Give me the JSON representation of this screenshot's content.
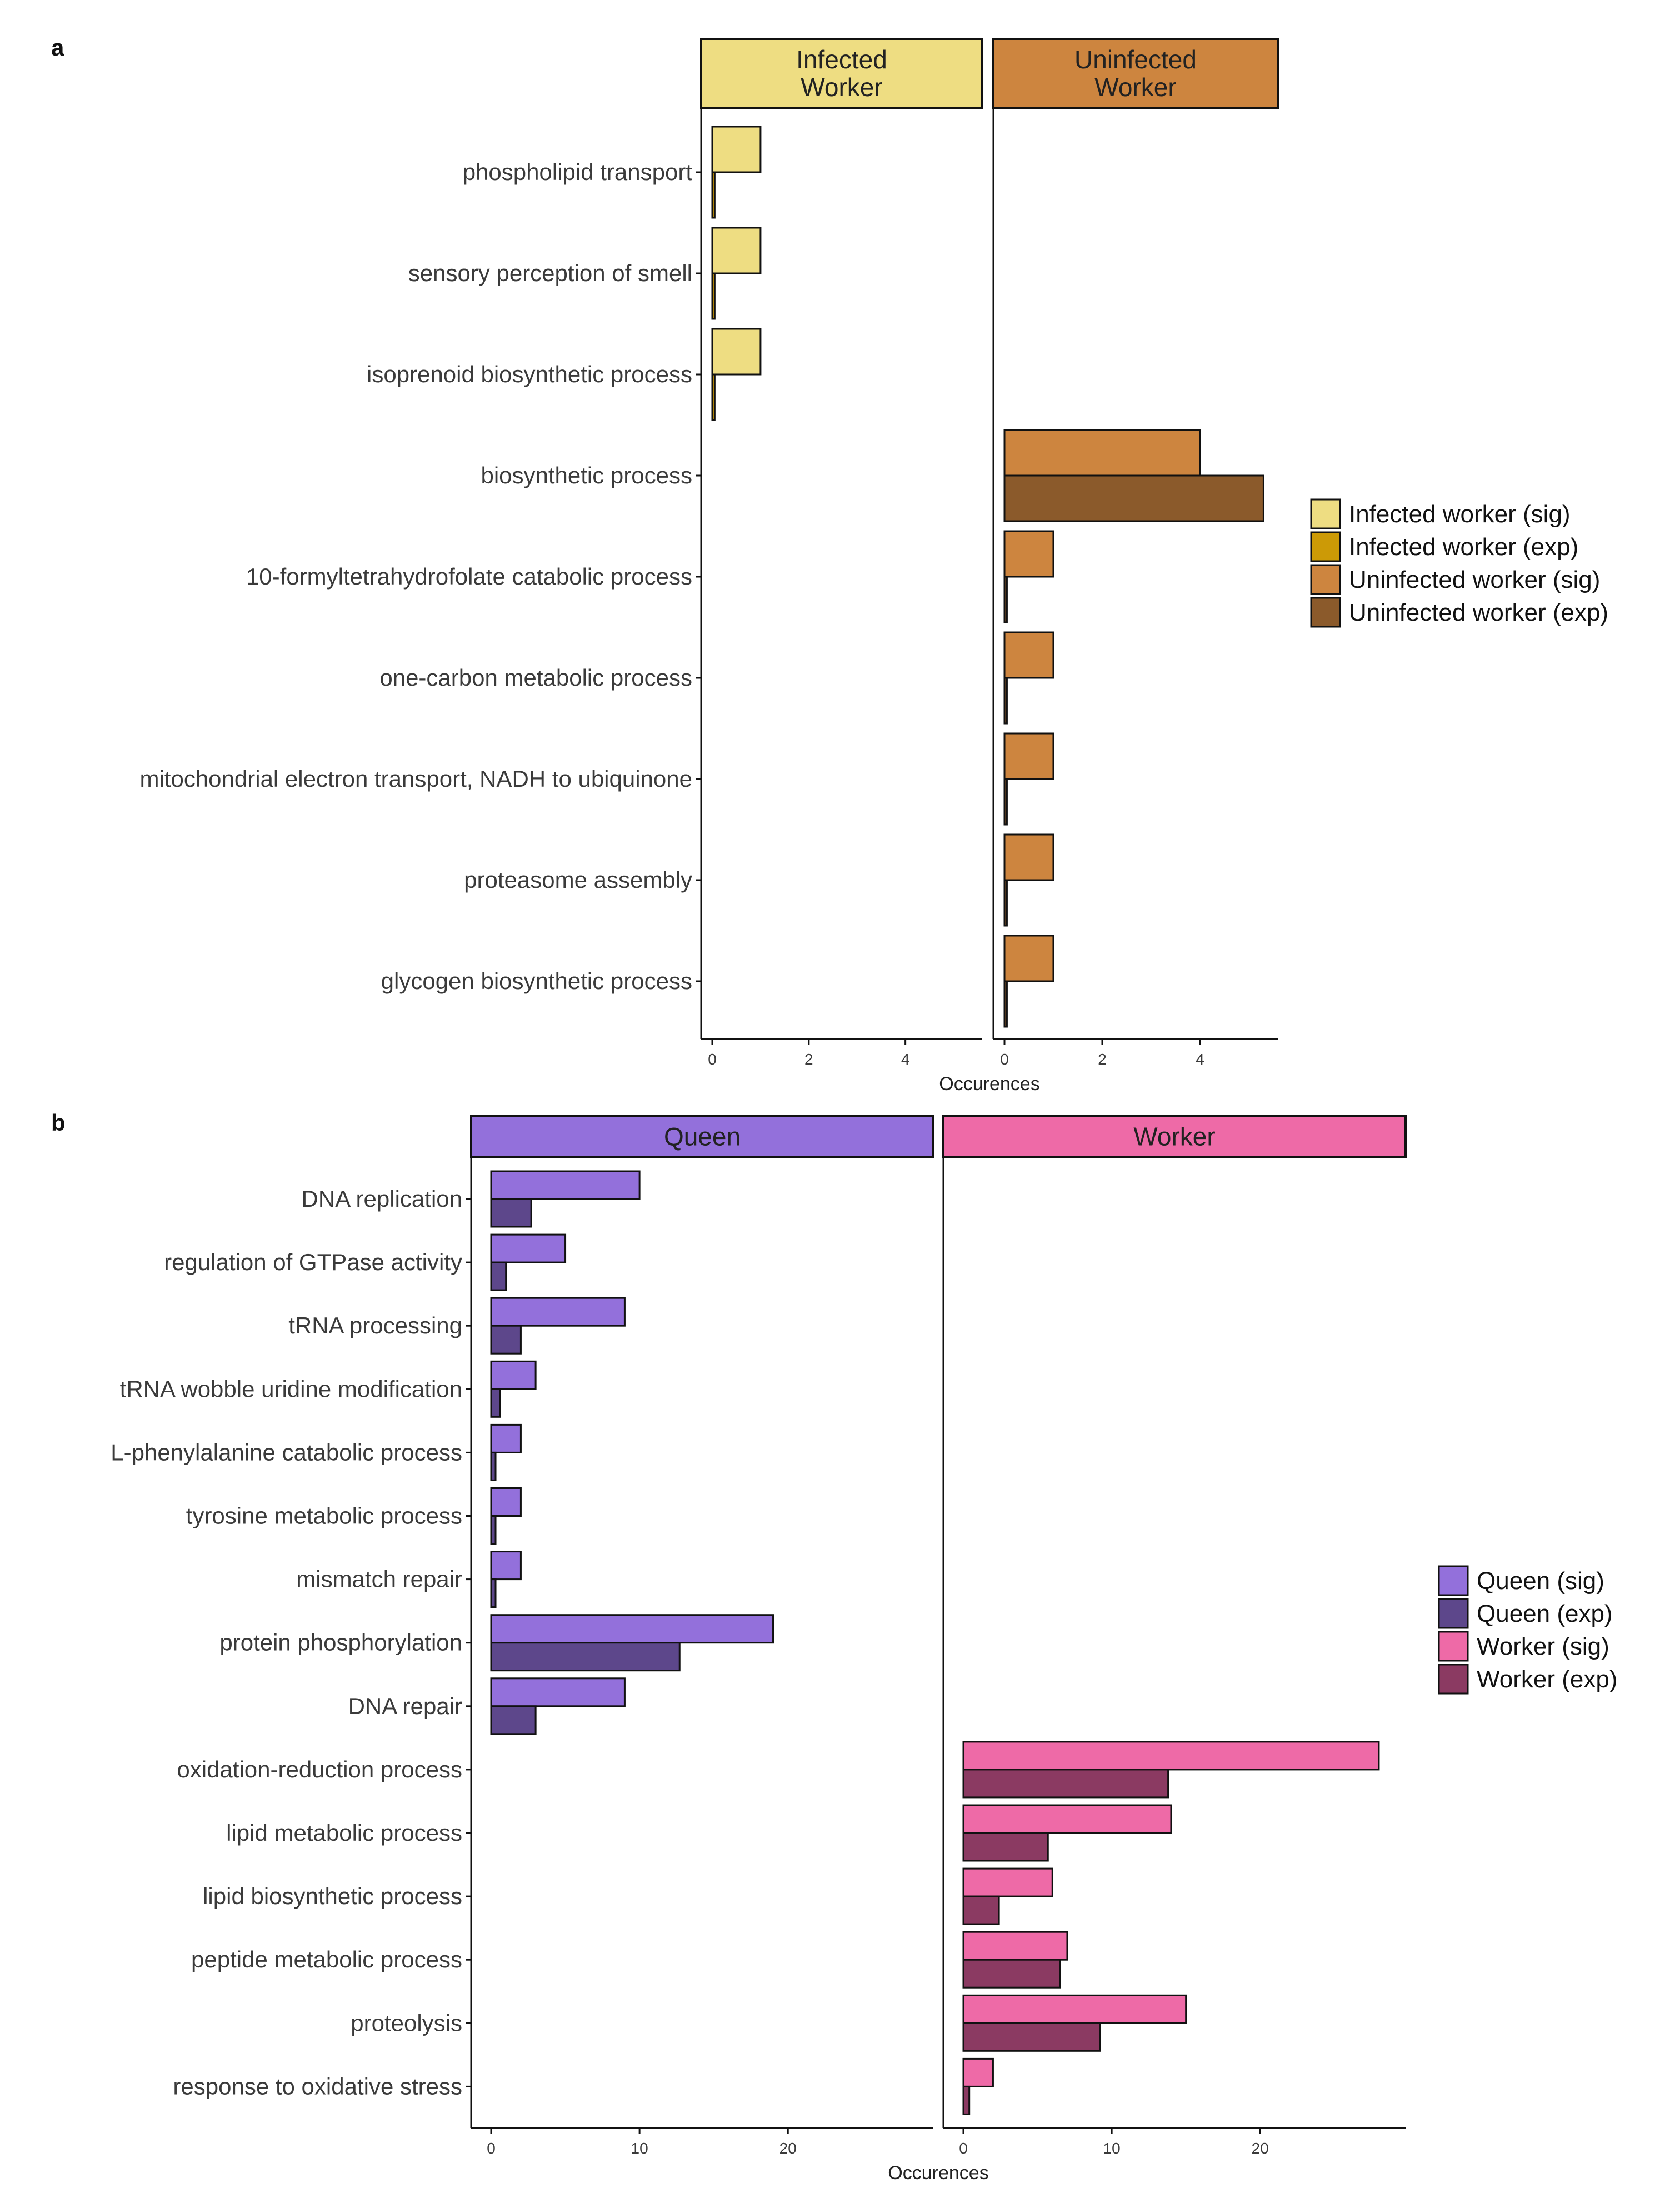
{
  "chart_data": [
    {
      "panel_label": "a",
      "type": "bar",
      "orientation": "horizontal",
      "facets": [
        {
          "label": "Infected\nWorker",
          "color": "#EEDD82"
        },
        {
          "label": "Uninfected\nWorker",
          "color": "#CD853F"
        }
      ],
      "categories": [
        "phospholipid transport",
        "sensory perception of smell",
        "isoprenoid biosynthetic process",
        "biosynthetic process",
        "10-formyltetrahydrofolate catabolic process",
        "one-carbon metabolic process",
        "mitochondrial electron transport, NADH to ubiquinone",
        "proteasome assembly",
        "glycogen biosynthetic process"
      ],
      "series": [
        {
          "name": "Infected worker (sig)",
          "facet": 0,
          "color": "#EEDD82",
          "values": [
            1,
            1,
            1,
            null,
            null,
            null,
            null,
            null,
            null
          ]
        },
        {
          "name": "Infected worker (exp)",
          "facet": 0,
          "color": "#CC9A06",
          "values": [
            0.05,
            0.05,
            0.05,
            null,
            null,
            null,
            null,
            null,
            null
          ]
        },
        {
          "name": "Uninfected worker (sig)",
          "facet": 1,
          "color": "#CD853F",
          "values": [
            null,
            null,
            null,
            4,
            1,
            1,
            1,
            1,
            1
          ]
        },
        {
          "name": "Uninfected worker (exp)",
          "facet": 1,
          "color": "#8B5A2B",
          "values": [
            null,
            null,
            null,
            5.3,
            0.05,
            0.05,
            0.05,
            0.05,
            0.05
          ]
        }
      ],
      "xlim": [
        0,
        5.5
      ],
      "xticks": [
        0,
        2,
        4
      ],
      "xlabel": "Occurences",
      "ylabel": "",
      "legend_position": "right"
    },
    {
      "panel_label": "b",
      "type": "bar",
      "orientation": "horizontal",
      "facets": [
        {
          "label": "Queen",
          "color": "#9370DB"
        },
        {
          "label": "Worker",
          "color": "#EE6AA7"
        }
      ],
      "categories": [
        "DNA replication",
        "regulation of GTPase activity",
        "tRNA processing",
        "tRNA wobble uridine modification",
        "L-phenylalanine catabolic process",
        "tyrosine metabolic process",
        "mismatch repair",
        "protein phosphorylation",
        "DNA repair",
        "oxidation-reduction process",
        "lipid metabolic process",
        "lipid biosynthetic process",
        "peptide metabolic process",
        "proteolysis",
        "response to oxidative stress"
      ],
      "series": [
        {
          "name": "Queen (sig)",
          "facet": 0,
          "color": "#9370DB",
          "values": [
            10,
            5,
            9,
            3,
            2,
            2,
            2,
            19,
            9,
            null,
            null,
            null,
            null,
            null,
            null
          ]
        },
        {
          "name": "Queen (exp)",
          "facet": 0,
          "color": "#5D478B",
          "values": [
            2.7,
            1,
            2,
            0.6,
            0.3,
            0.3,
            0.3,
            12.7,
            3,
            null,
            null,
            null,
            null,
            null,
            null
          ]
        },
        {
          "name": "Worker (sig)",
          "facet": 1,
          "color": "#EE6AA7",
          "values": [
            null,
            null,
            null,
            null,
            null,
            null,
            null,
            null,
            null,
            28,
            14,
            6,
            7,
            15,
            2
          ]
        },
        {
          "name": "Worker (exp)",
          "facet": 1,
          "color": "#8B3A62",
          "values": [
            null,
            null,
            null,
            null,
            null,
            null,
            null,
            null,
            null,
            13.8,
            5.7,
            2.4,
            6.5,
            9.2,
            0.4
          ]
        }
      ],
      "xlim": [
        0,
        29.5
      ],
      "xticks": [
        0,
        10,
        20
      ],
      "xlabel": "Occurences",
      "ylabel": "",
      "legend_position": "right"
    }
  ]
}
